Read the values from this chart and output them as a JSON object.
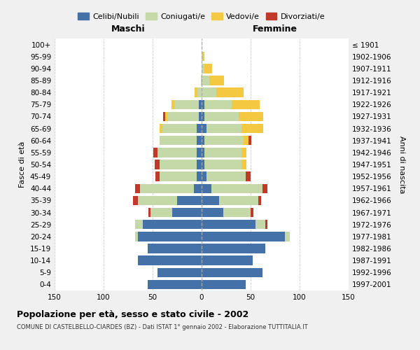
{
  "age_groups": [
    "0-4",
    "5-9",
    "10-14",
    "15-19",
    "20-24",
    "25-29",
    "30-34",
    "35-39",
    "40-44",
    "45-49",
    "50-54",
    "55-59",
    "60-64",
    "65-69",
    "70-74",
    "75-79",
    "80-84",
    "85-89",
    "90-94",
    "95-99",
    "100+"
  ],
  "birth_years": [
    "1997-2001",
    "1992-1996",
    "1987-1991",
    "1982-1986",
    "1977-1981",
    "1972-1976",
    "1967-1971",
    "1962-1966",
    "1957-1961",
    "1952-1956",
    "1947-1951",
    "1942-1946",
    "1937-1941",
    "1932-1936",
    "1927-1931",
    "1922-1926",
    "1917-1921",
    "1912-1916",
    "1907-1911",
    "1902-1906",
    "≤ 1901"
  ],
  "male": {
    "celibi": [
      55,
      45,
      65,
      55,
      65,
      60,
      30,
      25,
      8,
      5,
      5,
      5,
      5,
      5,
      3,
      3,
      0,
      0,
      0,
      0,
      0
    ],
    "coniugati": [
      0,
      0,
      0,
      0,
      3,
      8,
      22,
      40,
      55,
      38,
      38,
      40,
      38,
      35,
      32,
      25,
      4,
      1,
      0,
      0,
      0
    ],
    "vedovi": [
      0,
      0,
      0,
      0,
      0,
      0,
      0,
      0,
      0,
      0,
      0,
      0,
      0,
      3,
      2,
      3,
      3,
      0,
      0,
      0,
      0
    ],
    "divorziati": [
      0,
      0,
      0,
      0,
      0,
      0,
      2,
      5,
      5,
      4,
      5,
      4,
      0,
      0,
      2,
      0,
      0,
      0,
      0,
      0,
      0
    ]
  },
  "female": {
    "nubili": [
      45,
      62,
      52,
      65,
      85,
      55,
      22,
      18,
      10,
      5,
      3,
      3,
      3,
      5,
      3,
      3,
      0,
      0,
      0,
      0,
      0
    ],
    "coniugate": [
      0,
      0,
      0,
      0,
      5,
      10,
      28,
      40,
      52,
      40,
      38,
      38,
      40,
      36,
      35,
      28,
      15,
      8,
      3,
      1,
      0
    ],
    "vedove": [
      0,
      0,
      0,
      0,
      0,
      0,
      0,
      0,
      0,
      0,
      5,
      5,
      5,
      22,
      25,
      28,
      28,
      15,
      8,
      2,
      0
    ],
    "divorziate": [
      0,
      0,
      0,
      0,
      0,
      2,
      3,
      3,
      5,
      5,
      0,
      0,
      3,
      0,
      0,
      0,
      0,
      0,
      0,
      0,
      0
    ]
  },
  "colors": {
    "celibi": "#4472a8",
    "coniugati": "#c5d9a8",
    "vedovi": "#f5c842",
    "divorziati": "#c0392b"
  },
  "xlim": 150,
  "title": "Popolazione per età, sesso e stato civile - 2002",
  "subtitle": "COMUNE DI CASTELBELLO-CIARDES (BZ) - Dati ISTAT 1° gennaio 2002 - Elaborazione TUTTITALIA.IT",
  "xlabel_left": "Maschi",
  "xlabel_right": "Femmine",
  "ylabel_left": "Fasce di età",
  "ylabel_right": "Anni di nascita",
  "bg_color": "#f0f0f0",
  "plot_bg": "#ffffff",
  "grid_color": "#cccccc"
}
